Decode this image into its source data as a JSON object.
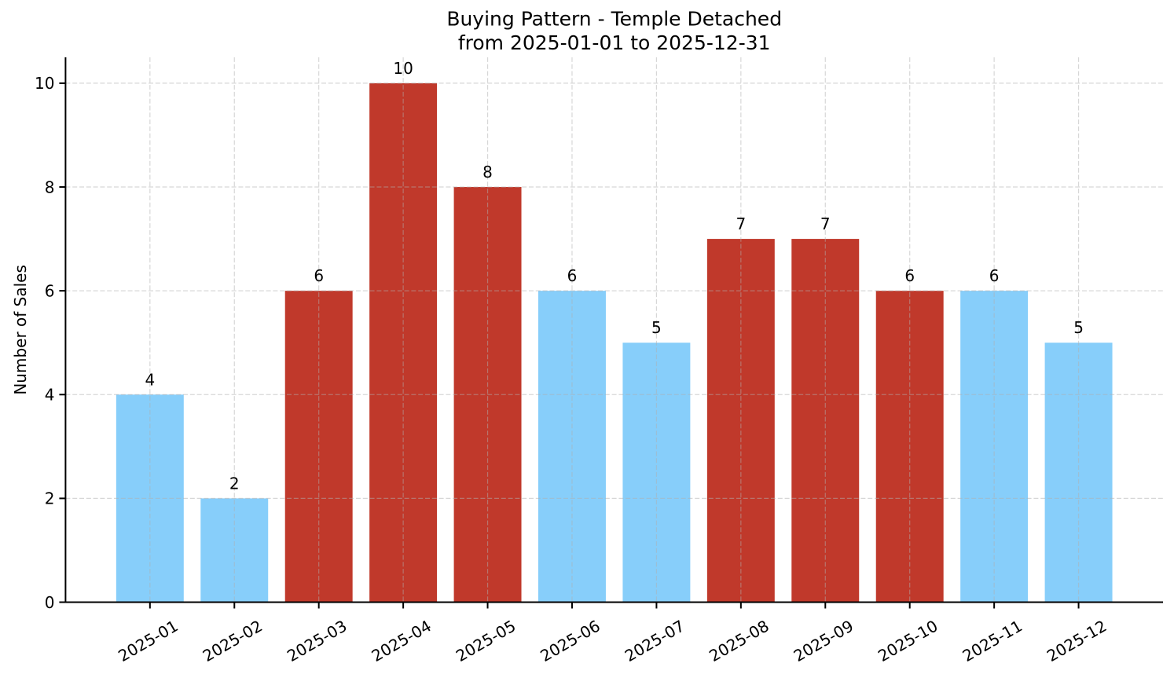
{
  "chart_data": {
    "type": "bar",
    "title": "Buying Pattern - Temple Detached",
    "subtitle": "from 2025-01-01 to 2025-12-31",
    "ylabel": "Number of Sales",
    "xlabel": "",
    "categories": [
      "2025-01",
      "2025-02",
      "2025-03",
      "2025-04",
      "2025-05",
      "2025-06",
      "2025-07",
      "2025-08",
      "2025-09",
      "2025-10",
      "2025-11",
      "2025-12"
    ],
    "values": [
      4,
      2,
      6,
      10,
      8,
      6,
      5,
      7,
      7,
      6,
      6,
      5
    ],
    "value_labels": [
      "4",
      "2",
      "6",
      "10",
      "8",
      "6",
      "5",
      "7",
      "7",
      "6",
      "6",
      "5"
    ],
    "bar_color_keys": [
      "blue",
      "blue",
      "red",
      "red",
      "red",
      "blue",
      "blue",
      "red",
      "red",
      "red",
      "blue",
      "blue"
    ],
    "palette": {
      "blue": "#87CEFA",
      "red": "#C0392B"
    },
    "yticks": [
      0,
      2,
      4,
      6,
      8,
      10
    ],
    "ytick_labels": [
      "0",
      "2",
      "4",
      "6",
      "8",
      "10"
    ],
    "ylim": [
      0,
      10.5
    ],
    "bar_width_fraction": 0.8,
    "grid": true,
    "grid_style": "dashed",
    "grid_color": "#b0b0b0",
    "legend_position": "none",
    "axis_color": "#000000",
    "background_color": "#ffffff",
    "xtick_rotation_deg": 30
  }
}
